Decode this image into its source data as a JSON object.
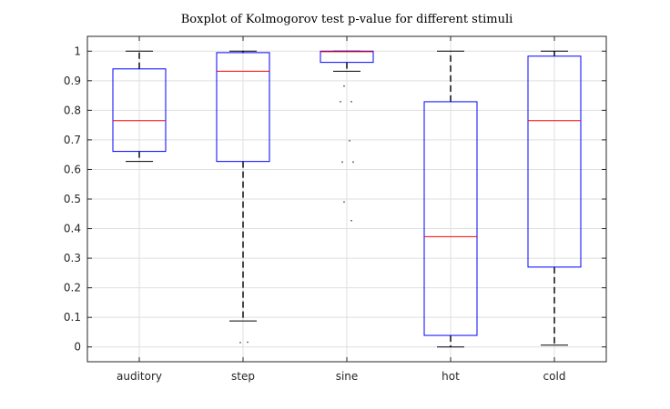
{
  "chart_data": {
    "type": "box",
    "title": "Boxplot of Kolmogorov test p-value for different stimuli",
    "xlabel": "",
    "ylabel": "",
    "categories": [
      "auditory",
      "step",
      "sine",
      "hot",
      "cold"
    ],
    "ylim": [
      -0.05,
      1.05
    ],
    "yticks": [
      0,
      0.1,
      0.2,
      0.3,
      0.4,
      0.5,
      0.6,
      0.7,
      0.8,
      0.9,
      1
    ],
    "ytick_labels": [
      "0",
      "0.1",
      "0.2",
      "0.3",
      "0.4",
      "0.5",
      "0.6",
      "0.7",
      "0.8",
      "0.9",
      "1"
    ],
    "grid": true,
    "boxes": [
      {
        "category": "auditory",
        "whisker_low": 0.627,
        "q1": 0.661,
        "median": 0.765,
        "q3": 0.94,
        "whisker_high": 1.0,
        "outliers": []
      },
      {
        "category": "step",
        "whisker_low": 0.088,
        "q1": 0.627,
        "median": 0.932,
        "q3": 0.995,
        "whisker_high": 1.0,
        "outliers": [
          0.015,
          0.016
        ]
      },
      {
        "category": "sine",
        "whisker_low": 0.932,
        "q1": 0.962,
        "median": 0.998,
        "q3": 1.0,
        "whisker_high": 1.0,
        "outliers": [
          0.882,
          0.829,
          0.829,
          0.697,
          0.625,
          0.625,
          0.49,
          0.427
        ]
      },
      {
        "category": "hot",
        "whisker_low": 0.0,
        "q1": 0.039,
        "median": 0.373,
        "q3": 0.829,
        "whisker_high": 1.0,
        "outliers": []
      },
      {
        "category": "cold",
        "whisker_low": 0.006,
        "q1": 0.27,
        "median": 0.765,
        "q3": 0.983,
        "whisker_high": 1.0,
        "outliers": []
      }
    ],
    "colors": {
      "box": "#0000ff",
      "median": "#ff0000",
      "whisker": "#000000",
      "grid": "#dfdfdf",
      "axis": "#262626"
    }
  }
}
